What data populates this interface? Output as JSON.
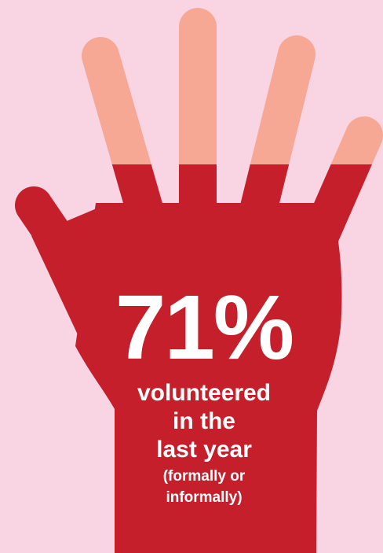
{
  "colors": {
    "background": "#f9d5e4",
    "hand_red": "#c41f2a",
    "fingertip_peach": "#f7a895",
    "text": "#ffffff"
  },
  "infographic": {
    "percentage": "71%",
    "caption_lines": [
      "volunteered",
      "in the",
      "last year"
    ],
    "note_lines": [
      "(formally or",
      "informally)"
    ]
  }
}
